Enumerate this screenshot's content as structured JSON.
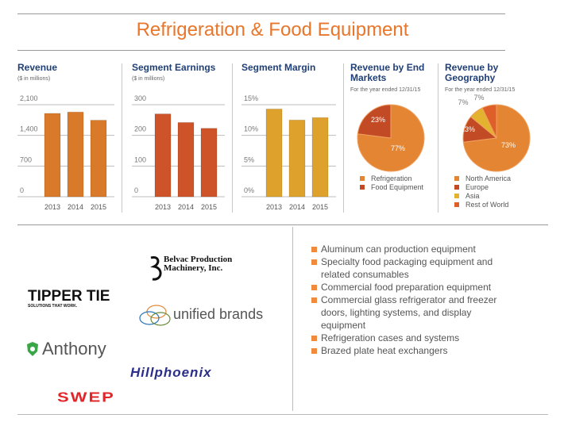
{
  "title": "Refrigeration & Food Equipment",
  "colors": {
    "title": "#e8762b",
    "revenue": "#d97a2a",
    "earnings": "#cf5328",
    "margin": "#dea22c",
    "heading": "#1f3f77"
  },
  "chart_data": [
    {
      "type": "bar",
      "title": "Revenue",
      "subtitle": "($ in millions)",
      "categories": [
        "2013",
        "2014",
        "2015"
      ],
      "values": [
        1902,
        1932,
        1746
      ],
      "ylim": [
        0,
        2100
      ],
      "yticks": [
        "0",
        "700",
        "1,400",
        "2,100"
      ],
      "grid": true
    },
    {
      "type": "bar",
      "title": "Segment Earnings",
      "subtitle": "($ in millions)",
      "categories": [
        "2013",
        "2014",
        "2015"
      ],
      "values": [
        270,
        242,
        223
      ],
      "ylim": [
        0,
        300
      ],
      "yticks": [
        "0",
        "100",
        "200",
        "300"
      ],
      "grid": true
    },
    {
      "type": "bar",
      "title": "Segment Margin",
      "categories": [
        "2013",
        "2014",
        "2015"
      ],
      "values": [
        14.3,
        12.5,
        12.9
      ],
      "ylim": [
        0,
        15
      ],
      "yticks": [
        "0%",
        "5%",
        "10%",
        "15%"
      ],
      "grid": true
    },
    {
      "type": "pie",
      "title": "Revenue by End Markets",
      "subtitle": "For the year ended 12/31/15",
      "slices": [
        {
          "name": "Refrigeration",
          "value": 77,
          "label": "77%",
          "color": "#e38532"
        },
        {
          "name": "Food Equipment",
          "value": 23,
          "label": "23%",
          "color": "#c24a25"
        }
      ],
      "legend": "bottom"
    },
    {
      "type": "pie",
      "title": "Revenue by Geography",
      "subtitle": "For the year ended 12/31/15",
      "slices": [
        {
          "name": "North America",
          "value": 73,
          "label": "73%",
          "color": "#e38532"
        },
        {
          "name": "Europe",
          "value": 13,
          "label": "13%",
          "color": "#c24a25"
        },
        {
          "name": "Asia",
          "value": 7,
          "label": "7%",
          "color": "#e3b22e"
        },
        {
          "name": "Rest of World",
          "value": 7,
          "label": "7%",
          "color": "#df5f2a"
        }
      ],
      "legend": "bottom"
    }
  ],
  "logos": [
    "Belvac Production Machinery, Inc.",
    "TIPPER TIE",
    "SOLUTIONS THAT WORK.",
    "unified brands",
    "Anthony",
    "Hillphoenix",
    "SWEP"
  ],
  "products": [
    "Aluminum can production equipment",
    "Specialty food packaging equipment and related consumables",
    "Commercial food preparation equipment",
    "Commercial glass refrigerator and freezer doors, lighting systems, and display equipment",
    "Refrigeration cases and systems",
    "Brazed plate heat exchangers"
  ]
}
